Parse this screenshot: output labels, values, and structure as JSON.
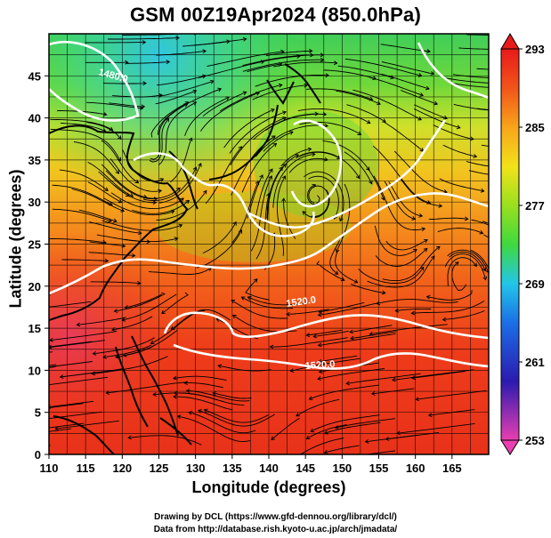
{
  "title": "GSM 00Z19Apr2024 (850.0hPa)",
  "x_axis": {
    "label": "Longitude (degrees)",
    "range": [
      110,
      170
    ],
    "ticks": [
      "110",
      "115",
      "120",
      "125",
      "130",
      "135",
      "140",
      "145",
      "150",
      "155",
      "160",
      "165"
    ]
  },
  "y_axis": {
    "label": "Latitude  (degrees)",
    "range": [
      0,
      50
    ],
    "ticks": [
      "0",
      "5",
      "10",
      "15",
      "20",
      "25",
      "30",
      "35",
      "40",
      "45"
    ]
  },
  "colorbar": {
    "labels": [
      "293",
      "285",
      "277",
      "269",
      "261",
      "253"
    ],
    "range": [
      253,
      293
    ],
    "colors": [
      "#e93fb0",
      "#2b1ab0",
      "#1b6fe6",
      "#22c6e8",
      "#3fd83f",
      "#9ae01e",
      "#f2e21a",
      "#f8a41a",
      "#f2541a",
      "#e81a1a"
    ]
  },
  "contours": [
    {
      "label": "1480.0"
    },
    {
      "label": "1520.0"
    },
    {
      "label": "1520.0"
    }
  ],
  "credits": [
    "Drawing by DCL (https://www.gfd-dennou.org/library/dcl/)",
    "Data from http://database.rish.kyoto-u.ac.jp/arch/jmadata/"
  ]
}
